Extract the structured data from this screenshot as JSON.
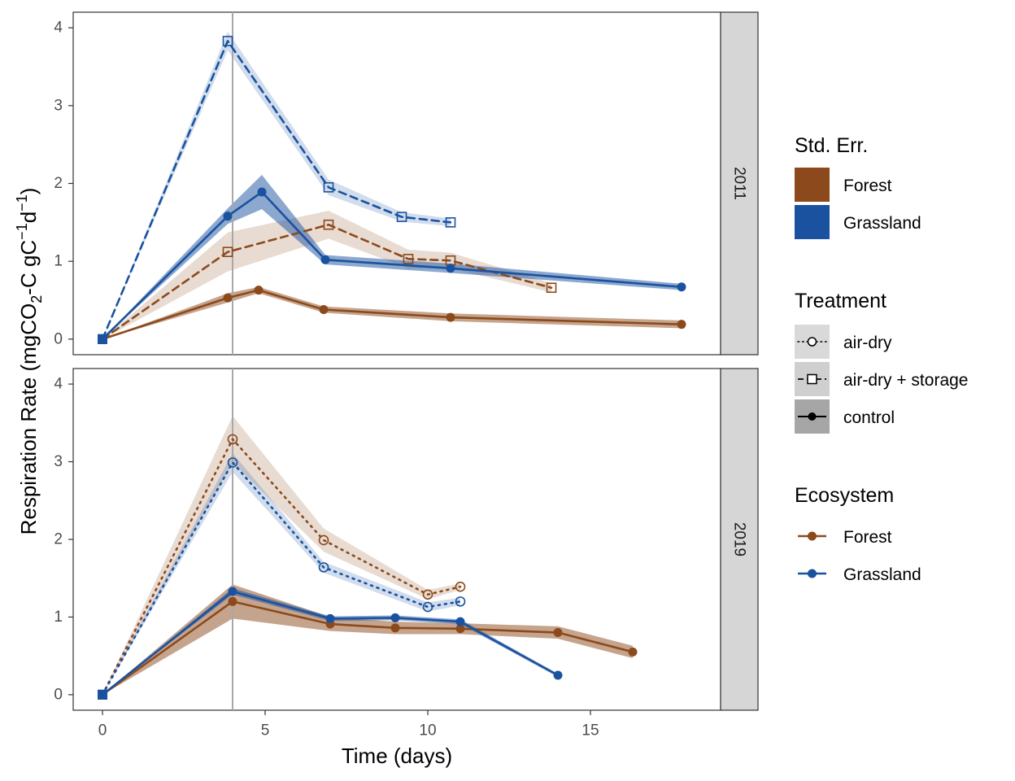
{
  "chart_data": {
    "type": "line",
    "xlabel": "Time (days)",
    "ylabel_parts": [
      "Respiration Rate (mgCO",
      "2",
      "-C gC",
      "−1",
      "d",
      "−1",
      ")"
    ],
    "xlim": [
      -0.9,
      19
    ],
    "ylim": [
      -0.2,
      4.2
    ],
    "xticks": [
      0,
      5,
      10,
      15
    ],
    "yticks": [
      0,
      1,
      2,
      3,
      4
    ],
    "xtick_labels": [
      "0",
      "5",
      "10",
      "15"
    ],
    "ytick_labels": [
      "0",
      "1",
      "2",
      "3",
      "4"
    ],
    "vline_x": 4,
    "grid": false,
    "legend_position": "right",
    "colors": {
      "Forest": "#8c4a1c",
      "Grassland": "#1a52a0"
    },
    "panels": [
      {
        "label": "2011",
        "series": [
          {
            "ecosystem": "Forest",
            "treatment": "control",
            "x": [
              0,
              3.85,
              4.8,
              6.8,
              10.7,
              17.8
            ],
            "y": [
              0,
              0.53,
              0.63,
              0.38,
              0.28,
              0.19
            ],
            "se": [
              0,
              0.06,
              0.04,
              0.04,
              0.05,
              0.05
            ]
          },
          {
            "ecosystem": "Forest",
            "treatment": "air-dry + storage",
            "x": [
              0,
              3.85,
              6.95,
              9.4,
              10.7,
              13.8
            ],
            "y": [
              0,
              1.12,
              1.47,
              1.03,
              1.01,
              0.66
            ],
            "se": [
              0,
              0.25,
              0.18,
              0.12,
              0.1,
              0.06
            ]
          },
          {
            "ecosystem": "Grassland",
            "treatment": "control",
            "x": [
              0,
              3.85,
              4.9,
              6.85,
              10.7,
              17.8
            ],
            "y": [
              0,
              1.58,
              1.89,
              1.02,
              0.91,
              0.67
            ],
            "se": [
              0,
              0.1,
              0.22,
              0.06,
              0.06,
              0.04
            ]
          },
          {
            "ecosystem": "Grassland",
            "treatment": "air-dry + storage",
            "x": [
              0,
              3.85,
              6.95,
              9.2,
              10.7
            ],
            "y": [
              0,
              3.83,
              1.95,
              1.57,
              1.5
            ],
            "se": [
              0,
              0.12,
              0.1,
              0.06,
              0.05
            ]
          }
        ]
      },
      {
        "label": "2019",
        "series": [
          {
            "ecosystem": "Forest",
            "treatment": "control",
            "x": [
              0,
              4,
              7,
              9,
              11,
              14,
              16.3
            ],
            "y": [
              0,
              1.2,
              0.91,
              0.86,
              0.85,
              0.8,
              0.55
            ],
            "se": [
              0,
              0.22,
              0.09,
              0.08,
              0.07,
              0.08,
              0.08
            ]
          },
          {
            "ecosystem": "Forest",
            "treatment": "air-dry",
            "x": [
              0,
              4,
              6.8,
              10,
              11
            ],
            "y": [
              0,
              3.29,
              1.99,
              1.29,
              1.39
            ],
            "se": [
              0,
              0.3,
              0.15,
              0.06,
              0.04
            ]
          },
          {
            "ecosystem": "Grassland",
            "treatment": "control",
            "x": [
              0,
              4,
              7,
              9,
              11,
              14
            ],
            "y": [
              0,
              1.33,
              0.98,
              0.99,
              0.94,
              0.25
            ],
            "se": [
              0,
              0.04,
              0.03,
              0.03,
              0.03,
              0.02
            ]
          },
          {
            "ecosystem": "Grassland",
            "treatment": "air-dry",
            "x": [
              0,
              4,
              6.8,
              10,
              11
            ],
            "y": [
              0,
              2.99,
              1.64,
              1.13,
              1.2
            ],
            "se": [
              0,
              0.12,
              0.07,
              0.06,
              0.05
            ]
          }
        ]
      }
    ],
    "legends": {
      "std_err": {
        "title": "Std. Err.",
        "items": [
          "Forest",
          "Grassland"
        ]
      },
      "treatment": {
        "title": "Treatment",
        "items": [
          "air-dry",
          "air-dry + storage",
          "control"
        ]
      },
      "ecosystem": {
        "title": "Ecosystem",
        "items": [
          "Forest",
          "Grassland"
        ]
      }
    }
  }
}
